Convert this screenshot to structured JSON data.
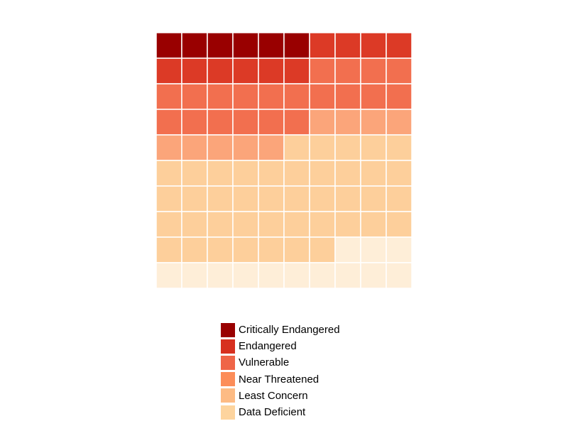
{
  "chart_data": {
    "type": "waffle",
    "grid": {
      "rows": 10,
      "cols": 10
    },
    "fill_order": "row-wise from top-left",
    "categories": [
      {
        "name": "Critically Endangered",
        "count": 6,
        "color": "#990000"
      },
      {
        "name": "Endangered",
        "count": 10,
        "color": "#d7301f"
      },
      {
        "name": "Vulnerable",
        "count": 20,
        "color": "#ef6548"
      },
      {
        "name": "Near Threatened",
        "count": 9,
        "color": "#fc8d59"
      },
      {
        "name": "Least Concern",
        "count": 42,
        "color": "#fdbb84"
      },
      {
        "name": "Data Deficient",
        "count": 13,
        "color": "#fdd49e"
      }
    ],
    "cell_colors_drawn": [
      "#990000",
      "#dc3a26",
      "#f26f4f",
      "#fba57a",
      "#fdcf9b",
      "#feeed8"
    ],
    "legend_position": "bottom-center",
    "cell_border_color": "#ffffff"
  }
}
